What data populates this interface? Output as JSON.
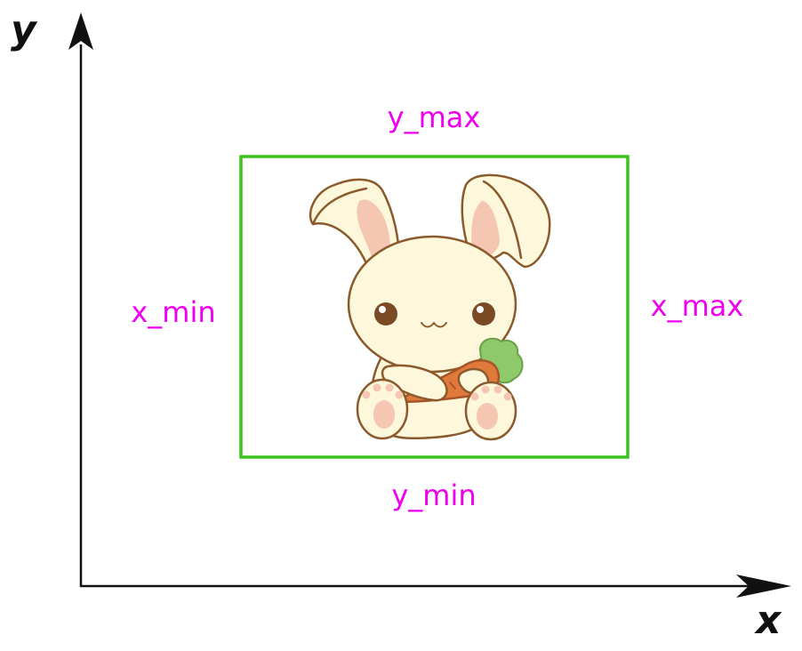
{
  "axes": {
    "x_label": "x",
    "y_label": "y"
  },
  "bounding_box": {
    "label_top": "y_max",
    "label_bottom": "y_min",
    "label_left": "x_min",
    "label_right": "x_max"
  },
  "object": {
    "icon": "bunny-holding-carrot-icon"
  },
  "colors": {
    "axis": "#111111",
    "box": "#3cc31e",
    "labels": "#ee00ee",
    "bunny_fill": "#fdf8dc",
    "bunny_outline": "#8a5a2c",
    "ear_inner": "#f5c6b2",
    "carrot": "#e07a3a",
    "carrot_leaves": "#8fca6a"
  }
}
